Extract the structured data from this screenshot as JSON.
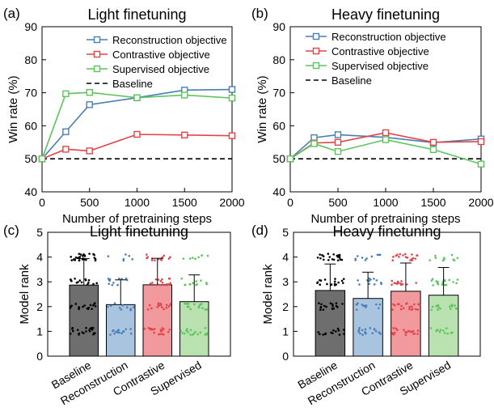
{
  "colors": {
    "reconstruction": "#4a7fb5",
    "contrastive": "#e2444a",
    "supervised": "#5cc45c",
    "baseline": "#000000",
    "bar_baseline": "#6e6e6e",
    "bar_reconstruction": "#a9c4df",
    "bar_contrastive": "#f1999c",
    "bar_supervised": "#b9e2b0"
  },
  "chart_data": [
    {
      "panel_label": "(a)",
      "type": "line",
      "title": "Light finetuning",
      "xlabel": "Number of pretraining steps",
      "ylabel": "Win rate (%)",
      "xlim": [
        0,
        2000
      ],
      "ylim": [
        40,
        90
      ],
      "xticks": [
        "0",
        "500",
        "1000",
        "1500",
        "2000"
      ],
      "yticks": [
        "40",
        "50",
        "60",
        "70",
        "80",
        "90"
      ],
      "legend_position": "top-right",
      "series": [
        {
          "name": "Reconstruction objective",
          "color_key": "reconstruction",
          "x": [
            0,
            250,
            500,
            1000,
            1500,
            2000
          ],
          "values": [
            50,
            58.2,
            66.4,
            68.5,
            70.8,
            71
          ]
        },
        {
          "name": "Contrastive objective",
          "color_key": "contrastive",
          "x": [
            0,
            250,
            500,
            1000,
            1500,
            2000
          ],
          "values": [
            50,
            52.9,
            52.4,
            57.4,
            57.2,
            57
          ]
        },
        {
          "name": "Supervised objective",
          "color_key": "supervised",
          "x": [
            0,
            250,
            500,
            1000,
            1500,
            2000
          ],
          "values": [
            50,
            69.7,
            70.1,
            68.5,
            69.3,
            68.4
          ]
        }
      ],
      "baseline": {
        "name": "Baseline",
        "value": 50
      }
    },
    {
      "panel_label": "(b)",
      "type": "line",
      "title": "Heavy finetuning",
      "xlabel": "Number of pretraining steps",
      "ylabel": "Win rate (%)",
      "xlim": [
        0,
        2000
      ],
      "ylim": [
        40,
        90
      ],
      "xticks": [
        "0",
        "500",
        "1000",
        "1500",
        "2000"
      ],
      "yticks": [
        "40",
        "50",
        "60",
        "70",
        "80",
        "90"
      ],
      "legend_position": "top-right",
      "series": [
        {
          "name": "Reconstruction objective",
          "color_key": "reconstruction",
          "x": [
            0,
            250,
            500,
            1000,
            1500,
            2000
          ],
          "values": [
            50,
            56.4,
            57.3,
            56.5,
            54.9,
            56
          ]
        },
        {
          "name": "Contrastive objective",
          "color_key": "contrastive",
          "x": [
            0,
            250,
            500,
            1000,
            1500,
            2000
          ],
          "values": [
            50,
            54.8,
            55,
            57.9,
            55,
            55.2
          ]
        },
        {
          "name": "Supervised objective",
          "color_key": "supervised",
          "x": [
            0,
            250,
            500,
            1000,
            1500,
            2000
          ],
          "values": [
            50,
            54.6,
            52.2,
            55.8,
            52.8,
            48.4
          ]
        }
      ],
      "baseline": {
        "name": "Baseline",
        "value": 50
      }
    },
    {
      "panel_label": "(c)",
      "type": "bar",
      "title": "Light finetuning",
      "xlabel": "",
      "ylabel": "Model rank",
      "ylim": [
        0,
        5
      ],
      "yticks": [
        "0",
        "1",
        "2",
        "3",
        "4",
        "5"
      ],
      "categories": [
        "Baseline",
        "Reconstruction",
        "Contrastive",
        "Supervised"
      ],
      "color_keys": [
        "bar_baseline",
        "bar_reconstruction",
        "bar_contrastive",
        "bar_supervised"
      ],
      "dot_color_keys": [
        "baseline",
        "reconstruction",
        "contrastive",
        "supervised"
      ],
      "values": [
        2.87,
        2.08,
        2.88,
        2.2
      ],
      "error": [
        1.07,
        1.0,
        1.07,
        1.08
      ],
      "rank_counts": [
        [
          22,
          18,
          15,
          28
        ],
        [
          15,
          10,
          12,
          6
        ],
        [
          20,
          16,
          16,
          14
        ],
        [
          18,
          14,
          12,
          8
        ]
      ]
    },
    {
      "panel_label": "(d)",
      "type": "bar",
      "title": "Heavy finetuning",
      "xlabel": "",
      "ylabel": "Model rank",
      "ylim": [
        0,
        5
      ],
      "yticks": [
        "0",
        "1",
        "2",
        "3",
        "4",
        "5"
      ],
      "categories": [
        "Baseline",
        "Reconstruction",
        "Contrastive",
        "Supervised"
      ],
      "color_keys": [
        "bar_baseline",
        "bar_reconstruction",
        "bar_contrastive",
        "bar_supervised"
      ],
      "dot_color_keys": [
        "baseline",
        "reconstruction",
        "contrastive",
        "supervised"
      ],
      "values": [
        2.65,
        2.33,
        2.62,
        2.46
      ],
      "error": [
        1.07,
        1.06,
        1.14,
        1.12
      ],
      "rank_counts": [
        [
          14,
          18,
          18,
          22
        ],
        [
          18,
          12,
          12,
          10
        ],
        [
          20,
          20,
          14,
          18
        ],
        [
          12,
          14,
          18,
          10
        ]
      ]
    }
  ]
}
